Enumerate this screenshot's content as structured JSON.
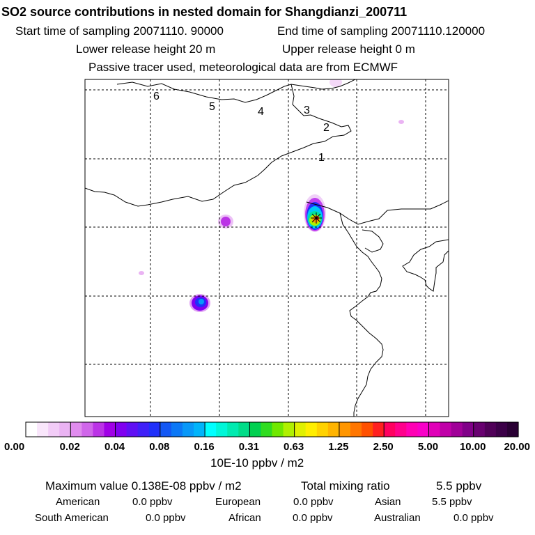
{
  "header": {
    "title": "SO2 source contributions in nested domain for Shangdianzi_200711",
    "start_label": "Start time of sampling 20071110. 90000",
    "end_label": "End time of sampling 20071110.120000",
    "lower_label": "Lower release height   20 m",
    "upper_label": "Upper release height    0 m",
    "tracer_label": "Passive tracer used, meteorological data are from ECMWF"
  },
  "chart_data": {
    "type": "heatmap",
    "title": "SO2 source contributions in nested domain for Shangdianzi_200711",
    "markers": [
      {
        "label": "1",
        "name": "marker-1"
      },
      {
        "label": "2",
        "name": "marker-2"
      },
      {
        "label": "3",
        "name": "marker-3"
      },
      {
        "label": "4",
        "name": "marker-4"
      },
      {
        "label": "5",
        "name": "marker-5"
      },
      {
        "label": "6",
        "name": "marker-6"
      }
    ],
    "plumes": [
      {
        "name": "plume-main",
        "level": 1.25,
        "note": "receptor site, strongest"
      },
      {
        "name": "plume-southwest",
        "level": 0.08
      },
      {
        "name": "plume-west",
        "level": 0.02
      },
      {
        "name": "plume-north",
        "level": 0.01
      }
    ],
    "colorbar": {
      "tick_labels": [
        "0.00",
        "0.02",
        "0.04",
        "0.08",
        "0.16",
        "0.31",
        "0.63",
        "1.25",
        "2.50",
        "5.00",
        "10.00",
        "20.00"
      ],
      "colors": [
        "#ffffff",
        "#f9e6fb",
        "#f2ccf7",
        "#eab3f3",
        "#e08cee",
        "#d066ea",
        "#bb33e6",
        "#a000e6",
        "#8000f0",
        "#6010f4",
        "#4020f8",
        "#2030fa",
        "#1458f4",
        "#0c78f6",
        "#0898f8",
        "#00b4fa",
        "#00ffff",
        "#00f6d8",
        "#00eab0",
        "#00dc88",
        "#00d050",
        "#30dc20",
        "#70e800",
        "#b0f000",
        "#e0f000",
        "#ffee00",
        "#ffd200",
        "#ffb400",
        "#ff9600",
        "#ff7600",
        "#ff5000",
        "#ff2020",
        "#ff0060",
        "#ff008c",
        "#ff00b4",
        "#f800c8",
        "#e000b8",
        "#c000a8",
        "#a00098",
        "#800088",
        "#680070",
        "#500058",
        "#3c0048",
        "#2a0034"
      ],
      "unit_label": "10E-10 ppbv / m2"
    }
  },
  "footer": {
    "max_label": "Maximum value  0.138E-08 ppbv / m2",
    "total_label": "Total mixing ratio",
    "total_value": "5.5 ppbv",
    "regions": [
      {
        "name": "American",
        "value": "0.0 ppbv"
      },
      {
        "name": "European",
        "value": "0.0 ppbv"
      },
      {
        "name": "Asian",
        "value": "5.5 ppbv"
      },
      {
        "name": "South American",
        "value": "0.0 ppbv"
      },
      {
        "name": "African",
        "value": "0.0 ppbv"
      },
      {
        "name": "Australian",
        "value": "0.0 ppbv"
      }
    ]
  }
}
